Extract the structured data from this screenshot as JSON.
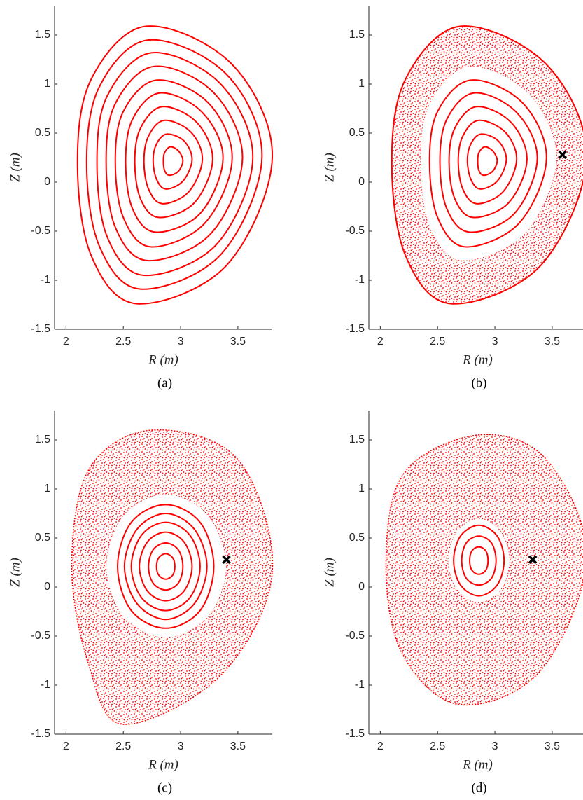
{
  "chart_data": [
    {
      "type": "scatter",
      "caption": "(a)",
      "x_label": "R (m)",
      "y_label": "Z (m)",
      "xlim": [
        1.9,
        3.8
      ],
      "ylim": [
        -1.5,
        1.8
      ],
      "xticks": [
        2,
        2.5,
        3,
        3.5
      ],
      "yticks": [
        -1.5,
        -1,
        -0.5,
        0,
        0.5,
        1,
        1.5
      ],
      "color": "#ff0000",
      "curves": [
        {
          "x": [
            3.8,
            3.45,
            2.7,
            2.22,
            2.1,
            2.22,
            2.62,
            3.4
          ],
          "y": [
            0.25,
            1.2,
            1.59,
            1.05,
            0.2,
            -0.75,
            -1.24,
            -0.85
          ]
        },
        {
          "x": [
            3.71,
            3.4,
            2.72,
            2.29,
            2.18,
            2.29,
            2.65,
            3.35
          ],
          "y": [
            0.25,
            1.1,
            1.45,
            0.97,
            0.2,
            -0.65,
            -1.09,
            -0.74
          ]
        },
        {
          "x": [
            3.63,
            3.35,
            2.75,
            2.36,
            2.27,
            2.36,
            2.68,
            3.31
          ],
          "y": [
            0.24,
            1.0,
            1.32,
            0.88,
            0.2,
            -0.56,
            -0.95,
            -0.64
          ]
        },
        {
          "x": [
            3.54,
            3.29,
            2.77,
            2.43,
            2.35,
            2.43,
            2.71,
            3.26
          ],
          "y": [
            0.24,
            0.91,
            1.18,
            0.8,
            0.21,
            -0.46,
            -0.8,
            -0.53
          ]
        },
        {
          "x": [
            3.45,
            3.24,
            2.79,
            2.5,
            2.43,
            2.5,
            2.74,
            3.21
          ],
          "y": [
            0.24,
            0.81,
            1.04,
            0.72,
            0.21,
            -0.36,
            -0.66,
            -0.42
          ]
        },
        {
          "x": [
            3.37,
            3.19,
            2.82,
            2.58,
            2.52,
            2.58,
            2.78,
            3.17
          ],
          "y": [
            0.24,
            0.71,
            0.91,
            0.64,
            0.21,
            -0.27,
            -0.51,
            -0.32
          ]
        },
        {
          "x": [
            3.28,
            3.14,
            2.84,
            2.65,
            2.6,
            2.65,
            2.81,
            3.12
          ],
          "y": [
            0.23,
            0.61,
            0.77,
            0.55,
            0.21,
            -0.17,
            -0.36,
            -0.21
          ]
        },
        {
          "x": [
            3.19,
            3.09,
            2.86,
            2.72,
            2.68,
            2.72,
            2.84,
            3.07
          ],
          "y": [
            0.23,
            0.51,
            0.63,
            0.47,
            0.21,
            -0.07,
            -0.22,
            -0.1
          ]
        },
        {
          "x": [
            3.1,
            3.03,
            2.88,
            2.79,
            2.76,
            2.79,
            2.87,
            3.02
          ],
          "y": [
            0.23,
            0.42,
            0.49,
            0.39,
            0.22,
            0.03,
            -0.07,
            0.01
          ]
        },
        {
          "x": [
            3.02,
            2.98,
            2.91,
            2.86,
            2.85,
            2.86,
            2.9,
            2.98
          ],
          "y": [
            0.22,
            0.32,
            0.36,
            0.3,
            0.22,
            0.12,
            0.07,
            0.11
          ]
        }
      ]
    },
    {
      "type": "scatter",
      "caption": "(b)",
      "x_label": "R (m)",
      "y_label": "Z (m)",
      "xlim": [
        1.9,
        3.8
      ],
      "ylim": [
        -1.5,
        1.8
      ],
      "xticks": [
        2,
        2.5,
        3,
        3.5
      ],
      "yticks": [
        -1.5,
        -1,
        -0.5,
        0,
        0.5,
        1,
        1.5
      ],
      "color": "#ff0000",
      "marker_color": "#000000",
      "chaos": {
        "outer": {
          "x": [
            3.8,
            3.45,
            2.7,
            2.22,
            2.1,
            2.22,
            2.62,
            3.4
          ],
          "y": [
            0.25,
            1.2,
            1.59,
            1.05,
            0.2,
            -0.75,
            -1.24,
            -0.85
          ]
        },
        "inner": {
          "x": [
            3.54,
            3.29,
            2.77,
            2.43,
            2.35,
            2.43,
            2.71,
            3.26
          ],
          "y": [
            0.24,
            0.91,
            1.18,
            0.8,
            0.21,
            -0.46,
            -0.8,
            -0.53
          ]
        }
      },
      "curves": [
        {
          "x": [
            3.8,
            3.45,
            2.7,
            2.22,
            2.1,
            2.22,
            2.62,
            3.4
          ],
          "y": [
            0.25,
            1.2,
            1.59,
            1.05,
            0.2,
            -0.75,
            -1.24,
            -0.85
          ]
        },
        {
          "x": [
            3.45,
            3.24,
            2.79,
            2.5,
            2.43,
            2.5,
            2.74,
            3.21
          ],
          "y": [
            0.24,
            0.81,
            1.04,
            0.72,
            0.21,
            -0.36,
            -0.66,
            -0.42
          ]
        },
        {
          "x": [
            3.37,
            3.19,
            2.82,
            2.58,
            2.52,
            2.58,
            2.78,
            3.17
          ],
          "y": [
            0.24,
            0.71,
            0.91,
            0.64,
            0.21,
            -0.27,
            -0.51,
            -0.32
          ]
        },
        {
          "x": [
            3.28,
            3.14,
            2.84,
            2.65,
            2.6,
            2.65,
            2.81,
            3.12
          ],
          "y": [
            0.23,
            0.61,
            0.77,
            0.55,
            0.21,
            -0.17,
            -0.36,
            -0.21
          ]
        },
        {
          "x": [
            3.19,
            3.09,
            2.86,
            2.72,
            2.68,
            2.72,
            2.84,
            3.07
          ],
          "y": [
            0.23,
            0.51,
            0.63,
            0.47,
            0.21,
            -0.07,
            -0.22,
            -0.1
          ]
        },
        {
          "x": [
            3.1,
            3.03,
            2.88,
            2.79,
            2.76,
            2.79,
            2.87,
            3.02
          ],
          "y": [
            0.23,
            0.42,
            0.49,
            0.39,
            0.22,
            0.03,
            -0.07,
            0.01
          ]
        },
        {
          "x": [
            3.02,
            2.98,
            2.91,
            2.86,
            2.85,
            2.86,
            2.9,
            2.98
          ],
          "y": [
            0.22,
            0.32,
            0.36,
            0.3,
            0.22,
            0.12,
            0.07,
            0.11
          ]
        }
      ],
      "marker": {
        "x": 3.59,
        "y": 0.28
      }
    },
    {
      "type": "scatter",
      "caption": "(c)",
      "x_label": "R (m)",
      "y_label": "Z (m)",
      "xlim": [
        1.9,
        3.8
      ],
      "ylim": [
        -1.5,
        1.8
      ],
      "xticks": [
        2,
        2.5,
        3,
        3.5
      ],
      "yticks": [
        -1.5,
        -1,
        -0.5,
        0,
        0.5,
        1,
        1.5
      ],
      "color": "#ff0000",
      "marker_color": "#000000",
      "chaos": {
        "outer": {
          "x": [
            3.8,
            3.5,
            2.75,
            2.2,
            2.05,
            2.2,
            2.5,
            3.35
          ],
          "y": [
            0.15,
            1.3,
            1.6,
            1.2,
            0.2,
            -0.8,
            -1.4,
            -0.9
          ]
        },
        "inner": {
          "x": [
            3.4,
            3.24,
            2.87,
            2.5,
            2.35,
            2.5,
            2.87,
            3.24
          ],
          "y": [
            0.21,
            0.73,
            0.95,
            0.73,
            0.21,
            -0.3,
            -0.52,
            -0.3
          ]
        }
      },
      "curves": [
        {
          "x": [
            3.29,
            3.17,
            2.87,
            2.57,
            2.45,
            2.57,
            2.87,
            3.17
          ],
          "y": [
            0.21,
            0.66,
            0.84,
            0.66,
            0.21,
            -0.24,
            -0.42,
            -0.24
          ]
        },
        {
          "x": [
            3.23,
            3.12,
            2.87,
            2.62,
            2.51,
            2.62,
            2.87,
            3.12
          ],
          "y": [
            0.21,
            0.59,
            0.75,
            0.59,
            0.21,
            -0.17,
            -0.33,
            -0.17
          ]
        },
        {
          "x": [
            3.17,
            3.08,
            2.87,
            2.66,
            2.57,
            2.66,
            2.87,
            3.08
          ],
          "y": [
            0.21,
            0.53,
            0.66,
            0.53,
            0.21,
            -0.11,
            -0.24,
            -0.11
          ]
        },
        {
          "x": [
            3.1,
            3.03,
            2.87,
            2.71,
            2.64,
            2.71,
            2.87,
            3.03
          ],
          "y": [
            0.21,
            0.46,
            0.56,
            0.46,
            0.21,
            -0.04,
            -0.14,
            -0.04
          ]
        },
        {
          "x": [
            3.02,
            2.98,
            2.87,
            2.76,
            2.72,
            2.76,
            2.87,
            2.98
          ],
          "y": [
            0.21,
            0.38,
            0.45,
            0.38,
            0.21,
            0.04,
            -0.03,
            0.04
          ]
        },
        {
          "x": [
            2.95,
            2.93,
            2.87,
            2.81,
            2.79,
            2.81,
            2.87,
            2.93
          ],
          "y": [
            0.21,
            0.3,
            0.34,
            0.3,
            0.21,
            0.12,
            0.08,
            0.12
          ]
        }
      ],
      "marker": {
        "x": 3.4,
        "y": 0.28
      }
    },
    {
      "type": "scatter",
      "caption": "(d)",
      "x_label": "R (m)",
      "y_label": "Z (m)",
      "xlim": [
        1.9,
        3.8
      ],
      "ylim": [
        -1.5,
        1.8
      ],
      "xticks": [
        2,
        2.5,
        3,
        3.5
      ],
      "yticks": [
        -1.5,
        -1,
        -0.5,
        0,
        0.5,
        1,
        1.5
      ],
      "color": "#ff0000",
      "marker_color": "#000000",
      "chaos": {
        "outer": {
          "x": [
            3.8,
            3.45,
            2.85,
            2.2,
            2.05,
            2.2,
            2.7,
            3.4
          ],
          "y": [
            0.3,
            1.3,
            1.55,
            1.15,
            0.2,
            -0.7,
            -1.2,
            -0.85
          ]
        },
        "inner": {
          "x": [
            3.13,
            3.05,
            2.86,
            2.67,
            2.59,
            2.67,
            2.86,
            3.05
          ],
          "y": [
            0.27,
            0.57,
            0.7,
            0.57,
            0.27,
            -0.03,
            -0.16,
            -0.03
          ]
        }
      },
      "curves": [
        {
          "x": [
            3.08,
            3.02,
            2.86,
            2.7,
            2.64,
            2.7,
            2.86,
            3.02
          ],
          "y": [
            0.27,
            0.52,
            0.63,
            0.52,
            0.27,
            0.02,
            -0.09,
            0.02
          ]
        },
        {
          "x": [
            3.01,
            2.97,
            2.86,
            2.75,
            2.71,
            2.75,
            2.86,
            2.97
          ],
          "y": [
            0.27,
            0.45,
            0.52,
            0.45,
            0.27,
            0.09,
            0.02,
            0.09
          ]
        },
        {
          "x": [
            2.94,
            2.92,
            2.86,
            2.8,
            2.78,
            2.8,
            2.86,
            2.92
          ],
          "y": [
            0.27,
            0.37,
            0.41,
            0.37,
            0.27,
            0.17,
            0.13,
            0.17
          ]
        }
      ],
      "marker": {
        "x": 3.33,
        "y": 0.28
      }
    }
  ]
}
